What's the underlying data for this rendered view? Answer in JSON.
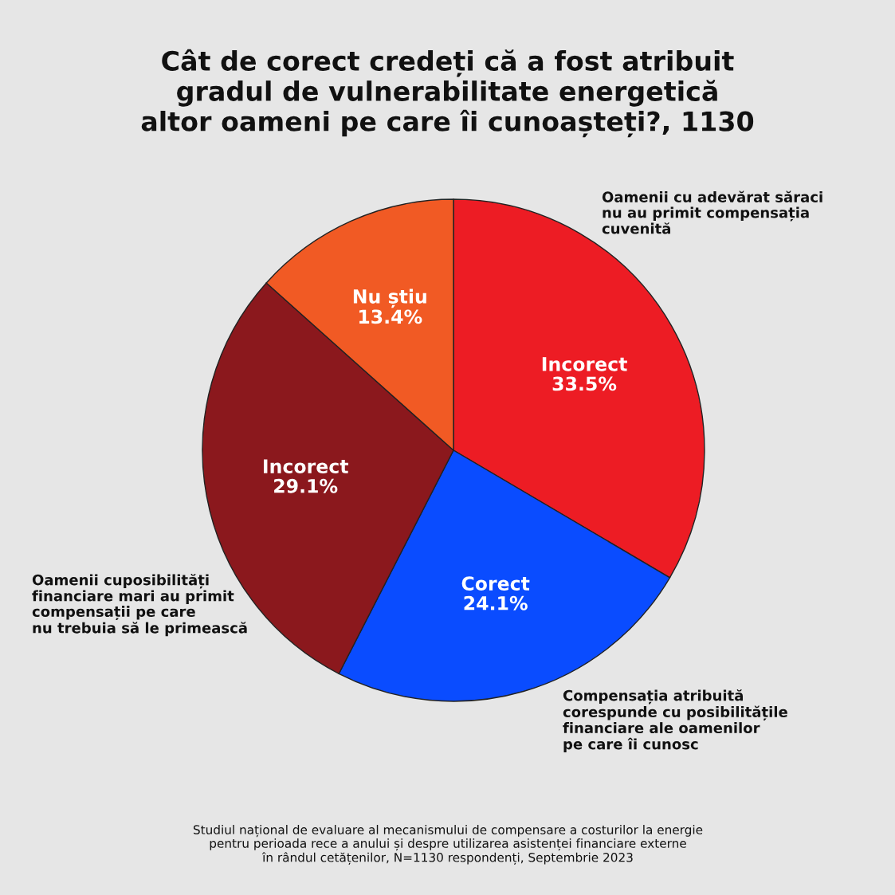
{
  "chart_data": {
    "type": "pie",
    "title": "Cât de corect credeți că a fost atribuit\ngradul de vulnerabilitate energetică\naltor oameni pe care îi cunoașteți?, 1130",
    "categories": [
      "Incorect",
      "Corect",
      "Incorect",
      "Nu știu"
    ],
    "values": [
      33.5,
      24.1,
      29.1,
      13.4
    ],
    "value_labels": [
      "33.5%",
      "24.1%",
      "29.1%",
      "13.4%"
    ],
    "colors": [
      "#ed1c24",
      "#0a4cff",
      "#8b181d",
      "#f15a24"
    ],
    "annotations": [
      "Oamenii cu adevărat săraci\nnu au primit compensația\ncuvenită",
      "Compensația atribuită\ncorespunde cu posibilitățile\nfinanciare ale oamenilor\npe care îi cunosc",
      "Oamenii cuposibilități\nfinanciare mari au primit\ncompensații pe care\nnu trebuia să le primească",
      "Studiul național de evaluare al mecanismului de compensare a costurilor la energie\npentru perioada rece a anului și despre utilizarea asistenței financiare externe\nîn rândul cetățenilor, N=1130 respondenți, Septembrie 2023"
    ]
  }
}
